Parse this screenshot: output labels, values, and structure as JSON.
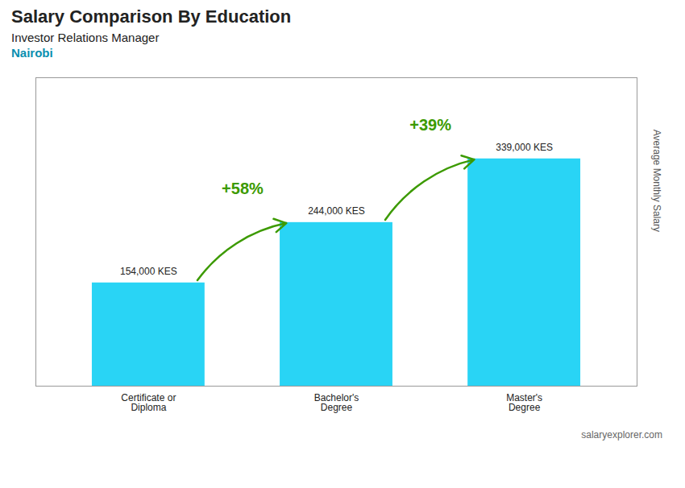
{
  "chart_data": {
    "type": "bar",
    "title": "Salary Comparison By Education",
    "subtitle": [
      "Investor Relations Manager",
      "Nairobi"
    ],
    "caption": "salaryexplorer.com",
    "ylabel": "Average Monthly Salary",
    "categories": [
      "Certificate or\nDiploma",
      "Bachelor's\nDegree",
      "Master's\nDegree"
    ],
    "values": [
      154000,
      244000,
      339000
    ],
    "value_labels": [
      "154,000 KES",
      "244,000 KES",
      "339,000 KES"
    ],
    "data_labels": true,
    "annotations": [
      "+58%",
      "+39%"
    ],
    "color": "#29d4f5",
    "ylim": [
      0,
      460000
    ],
    "tick_labels": "x",
    "grid": false
  }
}
